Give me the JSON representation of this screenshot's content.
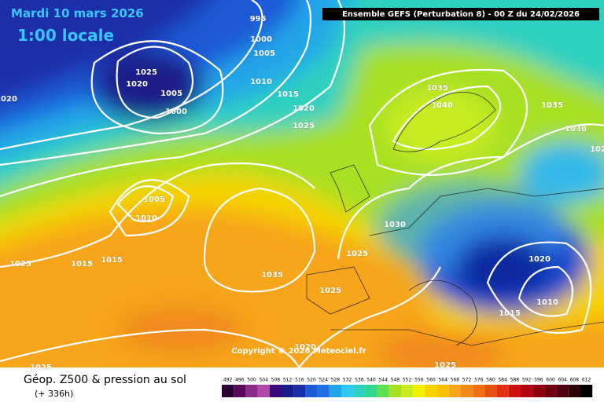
{
  "header": {
    "date": "Mardi 10 mars 2026",
    "time": "1:00 locale",
    "model": "Ensemble GEFS  (Perturbation 8)  -  00 Z du 24/02/2026"
  },
  "map": {
    "isobar_labels": [
      995,
      1000,
      1005,
      1025,
      1020,
      1005,
      1000,
      1010,
      1015,
      1020,
      1025,
      1020,
      1035,
      1040,
      1035,
      1030,
      1025,
      1005,
      1010,
      1030,
      1025,
      1015,
      1015,
      1025,
      1035,
      1025,
      1020,
      1010,
      1015,
      1020,
      1025,
      1025
    ],
    "copyright": "Copyright © 2026 Meteociel.fr"
  },
  "footer": {
    "title": "Géop. Z500 & pression au sol",
    "lead": "(+ 336h)",
    "scale": [
      492,
      496,
      500,
      504,
      508,
      512,
      516,
      520,
      524,
      528,
      532,
      536,
      540,
      544,
      548,
      552,
      556,
      560,
      564,
      568,
      572,
      576,
      580,
      584,
      588,
      592,
      596,
      600,
      604,
      608,
      612
    ]
  }
}
